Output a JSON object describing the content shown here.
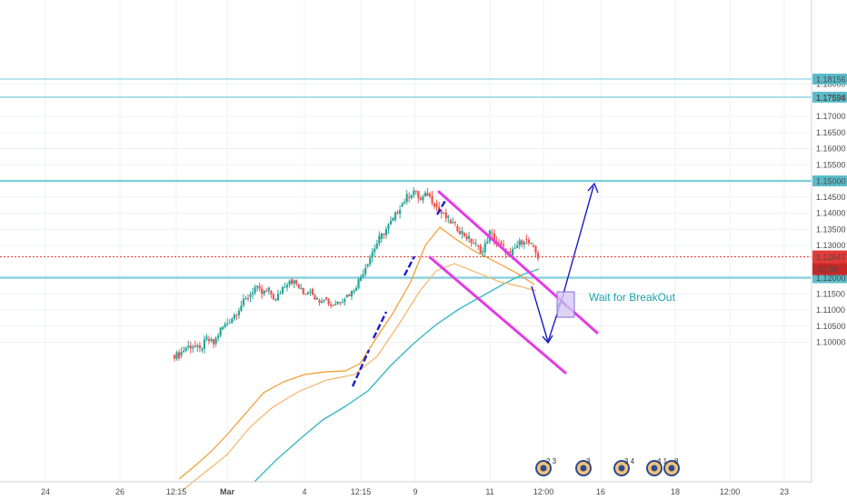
{
  "chart_data": {
    "type": "candlestick",
    "grid": true,
    "x_tick_labels": [
      "24",
      "26",
      "12:15",
      "Mar",
      "4",
      "12:15",
      "9",
      "11",
      "12:00",
      "16",
      "18",
      "12:00",
      "23"
    ],
    "y_tick_labels": [
      "1.18000",
      "1.17000",
      "1.16500",
      "1.16000",
      "1.15500",
      "1.14500",
      "1.14000",
      "1.13500",
      "1.13000",
      "1.11500",
      "1.11000",
      "1.10500",
      "1.10000"
    ],
    "ylim": [
      1.0955,
      1.1845
    ],
    "horizontal_levels": [
      {
        "value": 1.18156,
        "label": "1.18156"
      },
      {
        "value": 1.17596,
        "label": "1.17596"
      },
      {
        "value": 1.17594,
        "label": "1.17594"
      },
      {
        "value": 1.15,
        "label": "1.15000"
      },
      {
        "value": 1.12,
        "label": "1.12000"
      }
    ],
    "last_price": {
      "value": 1.12647,
      "label": "1.12647",
      "countdown": "02:59"
    },
    "annotation": "Wait for BreakOut",
    "event_markers": [
      {
        "label": "2 3"
      },
      {
        "label": "3"
      },
      {
        "label": "3 4"
      },
      {
        "label": "4 1"
      },
      {
        "label": "8"
      }
    ],
    "colors": {
      "up": "#26a69a",
      "down": "#ef5350",
      "level_line": "#7fcfd9",
      "level_badge": "#5bbcc9",
      "last_price": "#e53935",
      "channel": "#e33be3",
      "arrow": "#1b1bc7",
      "ma_fast": "#f39a2e",
      "ma_slow": "#39b8c8",
      "grid": "#eef0f3"
    },
    "price_path": [
      [
        0,
        1.096
      ],
      [
        1,
        1.0985
      ],
      [
        2,
        1.099
      ],
      [
        3,
        1.0975
      ],
      [
        4,
        1.101
      ],
      [
        5,
        1.0995
      ],
      [
        6,
        1.104
      ],
      [
        7,
        1.106
      ],
      [
        8,
        1.1085
      ],
      [
        9,
        1.1115
      ],
      [
        10,
        1.114
      ],
      [
        11,
        1.117
      ],
      [
        12,
        1.115
      ],
      [
        13,
        1.116
      ],
      [
        14,
        1.113
      ],
      [
        15,
        1.117
      ],
      [
        16,
        1.1195
      ],
      [
        17,
        1.118
      ],
      [
        18,
        1.115
      ],
      [
        19,
        1.1165
      ],
      [
        20,
        1.113
      ],
      [
        21,
        1.114
      ],
      [
        22,
        1.1115
      ],
      [
        23,
        1.1125
      ],
      [
        24,
        1.114
      ],
      [
        25,
        1.1155
      ],
      [
        26,
        1.119
      ],
      [
        27,
        1.1235
      ],
      [
        28,
        1.128
      ],
      [
        29,
        1.132
      ],
      [
        30,
        1.135
      ],
      [
        31,
        1.138
      ],
      [
        32,
        1.142
      ],
      [
        33,
        1.145
      ],
      [
        34,
        1.147
      ],
      [
        35,
        1.144
      ],
      [
        36,
        1.146
      ],
      [
        37,
        1.143
      ],
      [
        38,
        1.14
      ],
      [
        39,
        1.138
      ],
      [
        40,
        1.136
      ],
      [
        41,
        1.134
      ],
      [
        42,
        1.132
      ],
      [
        43,
        1.13
      ],
      [
        44,
        1.128
      ],
      [
        45,
        1.134
      ],
      [
        46,
        1.131
      ],
      [
        47,
        1.129
      ],
      [
        48,
        1.127
      ],
      [
        49,
        1.13
      ],
      [
        50,
        1.132
      ],
      [
        51,
        1.13
      ],
      [
        52,
        1.1265
      ]
    ]
  }
}
